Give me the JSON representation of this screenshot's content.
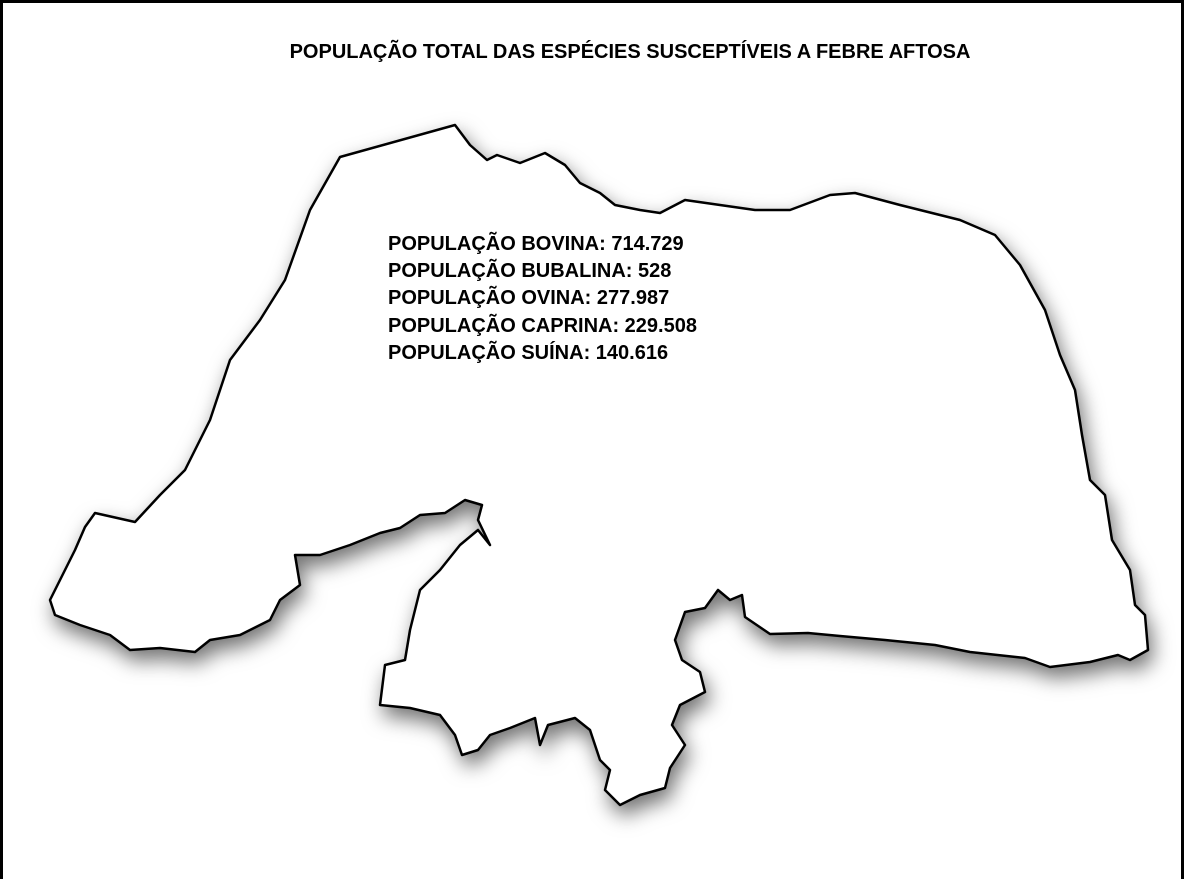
{
  "title": "POPULAÇÃO TOTAL DAS ESPÉCIES SUSCEPTÍVEIS A FEBRE AFTOSA",
  "lines": [
    "POPULAÇÃO BOVINA: 714.729",
    "POPULAÇÃO BUBALINA: 528",
    "POPULAÇÃO OVINA: 277.987",
    "POPULAÇÃO CAPRINA: 229.508",
    "POPULAÇÃO SUÍNA: 140.616"
  ]
}
